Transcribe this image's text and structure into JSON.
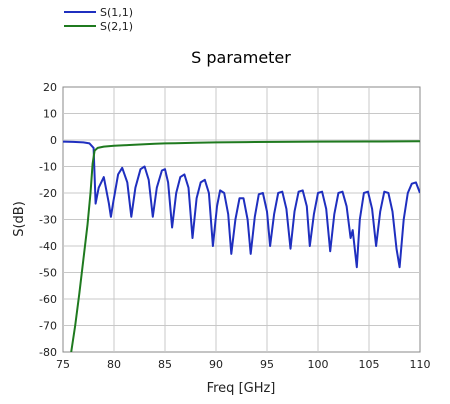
{
  "chart_data": {
    "type": "line",
    "title": "S parameter",
    "xlabel": "Freq [GHz]",
    "ylabel": "S(dB)",
    "xlim": [
      75,
      110
    ],
    "ylim": [
      -80,
      20
    ],
    "xticks": [
      "75",
      "80",
      "85",
      "90",
      "95",
      "100",
      "105",
      "110"
    ],
    "yticks": [
      "20",
      "10",
      "0",
      "-10",
      "-20",
      "-30",
      "-40",
      "-50",
      "-60",
      "-70",
      "-80"
    ],
    "grid": true,
    "legend_position": "top-left (outside plot)",
    "series": [
      {
        "name": "S(1,1)",
        "color": "#1f2fbf",
        "points": [
          [
            75,
            -0.6
          ],
          [
            76,
            -0.7
          ],
          [
            77,
            -0.9
          ],
          [
            77.6,
            -1.3
          ],
          [
            78.0,
            -3
          ],
          [
            78.2,
            -24
          ],
          [
            78.5,
            -18
          ],
          [
            79.0,
            -14
          ],
          [
            79.5,
            -24
          ],
          [
            79.7,
            -29
          ],
          [
            79.9,
            -24
          ],
          [
            80.4,
            -13
          ],
          [
            80.8,
            -10.5
          ],
          [
            81.3,
            -16
          ],
          [
            81.7,
            -29
          ],
          [
            82.1,
            -18
          ],
          [
            82.6,
            -11
          ],
          [
            83.0,
            -10
          ],
          [
            83.4,
            -15
          ],
          [
            83.8,
            -29
          ],
          [
            84.2,
            -18
          ],
          [
            84.7,
            -11.5
          ],
          [
            85.0,
            -11
          ],
          [
            85.3,
            -16
          ],
          [
            85.7,
            -33
          ],
          [
            86.1,
            -20
          ],
          [
            86.5,
            -14
          ],
          [
            86.9,
            -13
          ],
          [
            87.3,
            -18
          ],
          [
            87.7,
            -37
          ],
          [
            88.1,
            -22
          ],
          [
            88.5,
            -16
          ],
          [
            88.9,
            -15
          ],
          [
            89.3,
            -20
          ],
          [
            89.7,
            -40
          ],
          [
            90.1,
            -25
          ],
          [
            90.4,
            -19
          ],
          [
            90.8,
            -20
          ],
          [
            91.2,
            -28
          ],
          [
            91.5,
            -43
          ],
          [
            91.9,
            -30
          ],
          [
            92.3,
            -22
          ],
          [
            92.7,
            -22
          ],
          [
            93.1,
            -30
          ],
          [
            93.4,
            -43
          ],
          [
            93.8,
            -29
          ],
          [
            94.2,
            -20.5
          ],
          [
            94.6,
            -20
          ],
          [
            95.0,
            -27
          ],
          [
            95.3,
            -40
          ],
          [
            95.7,
            -28
          ],
          [
            96.1,
            -20
          ],
          [
            96.5,
            -19.5
          ],
          [
            96.9,
            -26
          ],
          [
            97.3,
            -41
          ],
          [
            97.7,
            -27
          ],
          [
            98.1,
            -19.5
          ],
          [
            98.5,
            -19
          ],
          [
            98.9,
            -25
          ],
          [
            99.2,
            -40
          ],
          [
            99.6,
            -28
          ],
          [
            100.0,
            -20
          ],
          [
            100.4,
            -19.5
          ],
          [
            100.8,
            -26
          ],
          [
            101.2,
            -42
          ],
          [
            101.6,
            -28
          ],
          [
            102.0,
            -20
          ],
          [
            102.4,
            -19.5
          ],
          [
            102.8,
            -25
          ],
          [
            103.2,
            -37
          ],
          [
            103.4,
            -34
          ],
          [
            103.8,
            -48
          ],
          [
            104.1,
            -30
          ],
          [
            104.5,
            -20
          ],
          [
            104.9,
            -19.5
          ],
          [
            105.3,
            -26
          ],
          [
            105.7,
            -40
          ],
          [
            106.1,
            -27
          ],
          [
            106.5,
            -19.5
          ],
          [
            106.9,
            -20
          ],
          [
            107.3,
            -27
          ],
          [
            107.7,
            -41
          ],
          [
            108.0,
            -48
          ],
          [
            108.4,
            -30
          ],
          [
            108.8,
            -20
          ],
          [
            109.2,
            -16.5
          ],
          [
            109.6,
            -16
          ],
          [
            110,
            -20
          ]
        ]
      },
      {
        "name": "S(2,1)",
        "color": "#1f7a1f",
        "points": [
          [
            75.8,
            -80
          ],
          [
            76.2,
            -70
          ],
          [
            76.6,
            -58
          ],
          [
            77.0,
            -45
          ],
          [
            77.4,
            -32
          ],
          [
            77.7,
            -20
          ],
          [
            77.9,
            -9
          ],
          [
            78.1,
            -4
          ],
          [
            78.4,
            -3
          ],
          [
            79.0,
            -2.5
          ],
          [
            80.0,
            -2.2
          ],
          [
            81.0,
            -2.0
          ],
          [
            82.0,
            -1.8
          ],
          [
            83.0,
            -1.6
          ],
          [
            84.0,
            -1.4
          ],
          [
            85.0,
            -1.3
          ],
          [
            86.0,
            -1.2
          ],
          [
            88.0,
            -1.0
          ],
          [
            90.0,
            -0.9
          ],
          [
            93.0,
            -0.8
          ],
          [
            96.0,
            -0.7
          ],
          [
            100.0,
            -0.6
          ],
          [
            105.0,
            -0.55
          ],
          [
            110.0,
            -0.5
          ]
        ]
      }
    ]
  }
}
